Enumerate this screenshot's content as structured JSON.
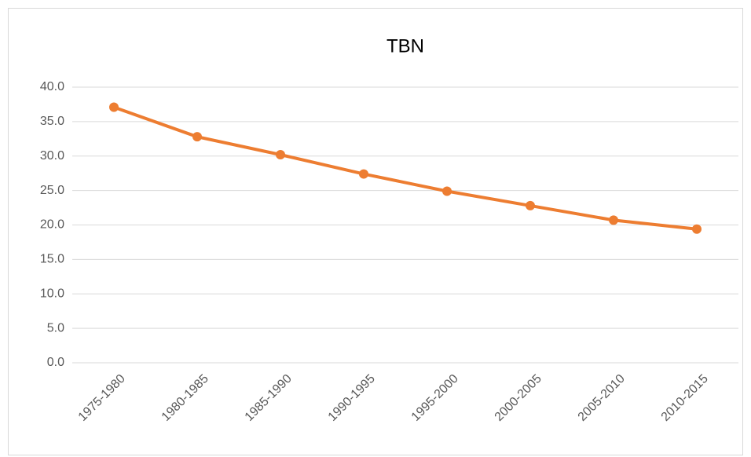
{
  "chart_data": {
    "type": "line",
    "title": "TBN",
    "categories": [
      "1975-1980",
      "1980-1985",
      "1985-1990",
      "1990-1995",
      "1995-2000",
      "2000-2005",
      "2005-2010",
      "2010-2015"
    ],
    "series": [
      {
        "name": "TBN",
        "color": "#ed7d31",
        "values": [
          37.1,
          32.8,
          30.2,
          27.4,
          24.9,
          22.8,
          20.7,
          19.4
        ]
      }
    ],
    "ylim": [
      0,
      40
    ],
    "yticks": [
      {
        "value": 0,
        "label": "0.0"
      },
      {
        "value": 5,
        "label": "5.0"
      },
      {
        "value": 10,
        "label": "10.0"
      },
      {
        "value": 15,
        "label": "15.0"
      },
      {
        "value": 20,
        "label": "20.0"
      },
      {
        "value": 25,
        "label": "25.0"
      },
      {
        "value": 30,
        "label": "30.0"
      },
      {
        "value": 35,
        "label": "35.0"
      },
      {
        "value": 40,
        "label": "40.0"
      }
    ],
    "grid": true
  }
}
